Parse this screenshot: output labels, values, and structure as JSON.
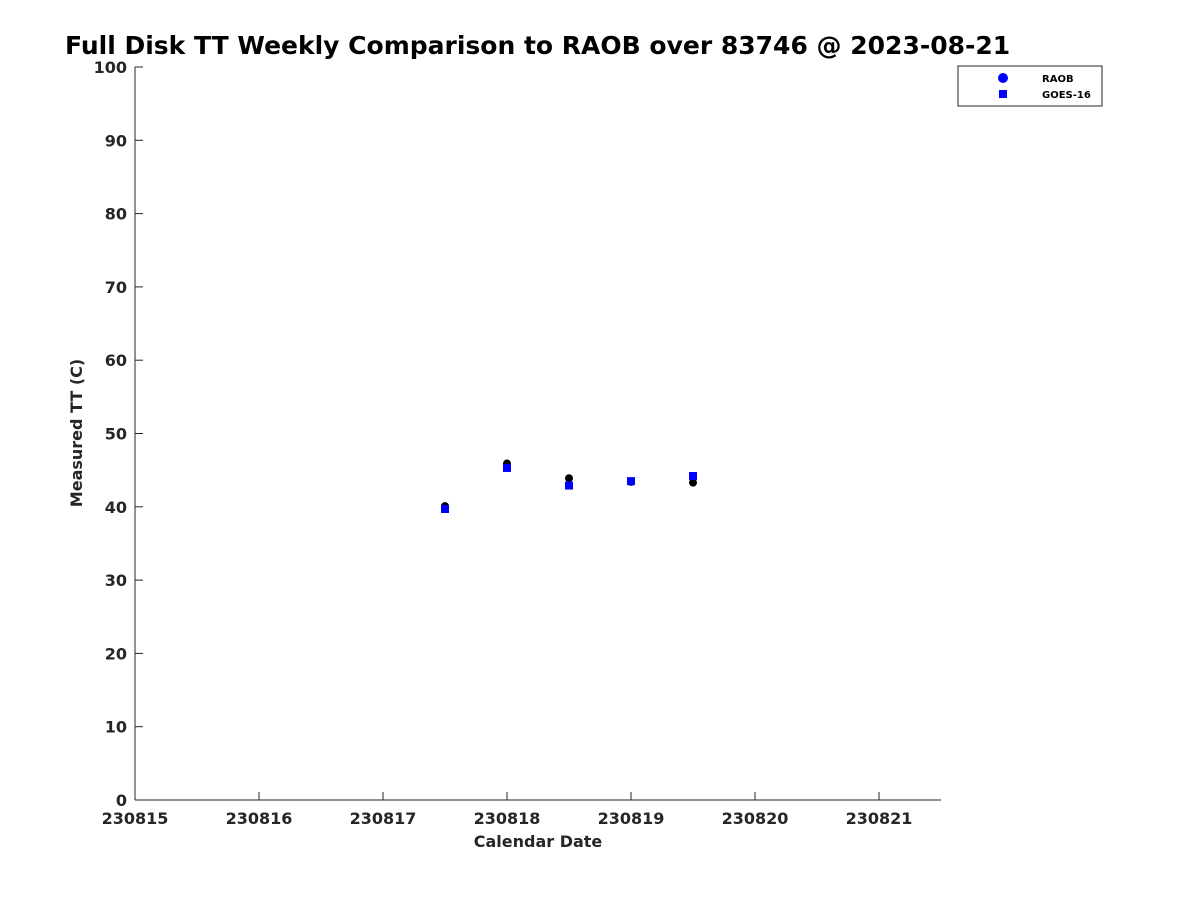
{
  "chart_data": {
    "type": "scatter",
    "title": "Full Disk TT Weekly Comparison to RAOB over 83746 @ 2023-08-21",
    "xlabel": "Calendar Date",
    "ylabel": "Measured TT (C)",
    "xlim": [
      230815,
      230821.5
    ],
    "ylim": [
      0,
      100
    ],
    "x_ticks": [
      230815,
      230816,
      230817,
      230818,
      230819,
      230820,
      230821
    ],
    "x_tick_labels": [
      "230815",
      "230816",
      "230817",
      "230818",
      "230819",
      "230820",
      "230821"
    ],
    "y_ticks": [
      0,
      10,
      20,
      30,
      40,
      50,
      60,
      70,
      80,
      90,
      100
    ],
    "y_tick_labels": [
      "0",
      "10",
      "20",
      "30",
      "40",
      "50",
      "60",
      "70",
      "80",
      "90",
      "100"
    ],
    "grid": false,
    "legend_position": "top-right outside",
    "series": [
      {
        "name": "RAOB",
        "marker": "circle",
        "color": "#000000",
        "legend_color": "#0000ff",
        "x": [
          230817.5,
          230818.0,
          230818.5,
          230819.0,
          230819.5
        ],
        "y": [
          40.1,
          45.9,
          43.9,
          43.4,
          43.3
        ]
      },
      {
        "name": "GOES-16",
        "marker": "square",
        "color": "#0000ff",
        "legend_color": "#0000ff",
        "x": [
          230817.5,
          230818.0,
          230818.5,
          230819.0,
          230819.5
        ],
        "y": [
          39.7,
          45.3,
          42.9,
          43.5,
          44.2
        ]
      }
    ]
  }
}
